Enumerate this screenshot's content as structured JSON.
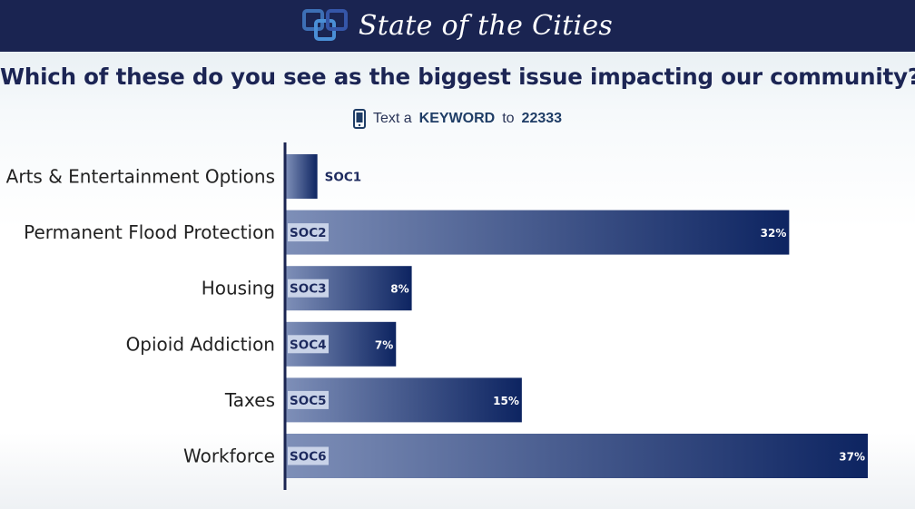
{
  "header": {
    "brand": "State of the Cities"
  },
  "question": "Which of these do you see as the biggest issue impacting our community?",
  "instruction": {
    "prefix": "Text a",
    "keyword": "KEYWORD",
    "middle": "to",
    "number": "22333"
  },
  "colors": {
    "banner": "#1a2451",
    "bar_dark": "#0d2461",
    "bar_light": "#7e8fb8",
    "title": "#1c2554"
  },
  "chart_data": {
    "type": "bar",
    "orientation": "horizontal",
    "categories": [
      "Arts & Entertainment Options",
      "Permanent Flood Protection",
      "Housing",
      "Opioid Addiction",
      "Taxes",
      "Workforce"
    ],
    "codes": [
      "SOC1",
      "SOC2",
      "SOC3",
      "SOC4",
      "SOC5",
      "SOC6"
    ],
    "values": [
      2,
      32,
      8,
      7,
      15,
      37
    ],
    "value_labels": [
      "",
      "32%",
      "8%",
      "7%",
      "15%",
      "37%"
    ],
    "unit": "%",
    "xlim": [
      0,
      37
    ],
    "title": "Which of these do you see as the biggest issue impacting our community?",
    "xlabel": "",
    "ylabel": ""
  }
}
